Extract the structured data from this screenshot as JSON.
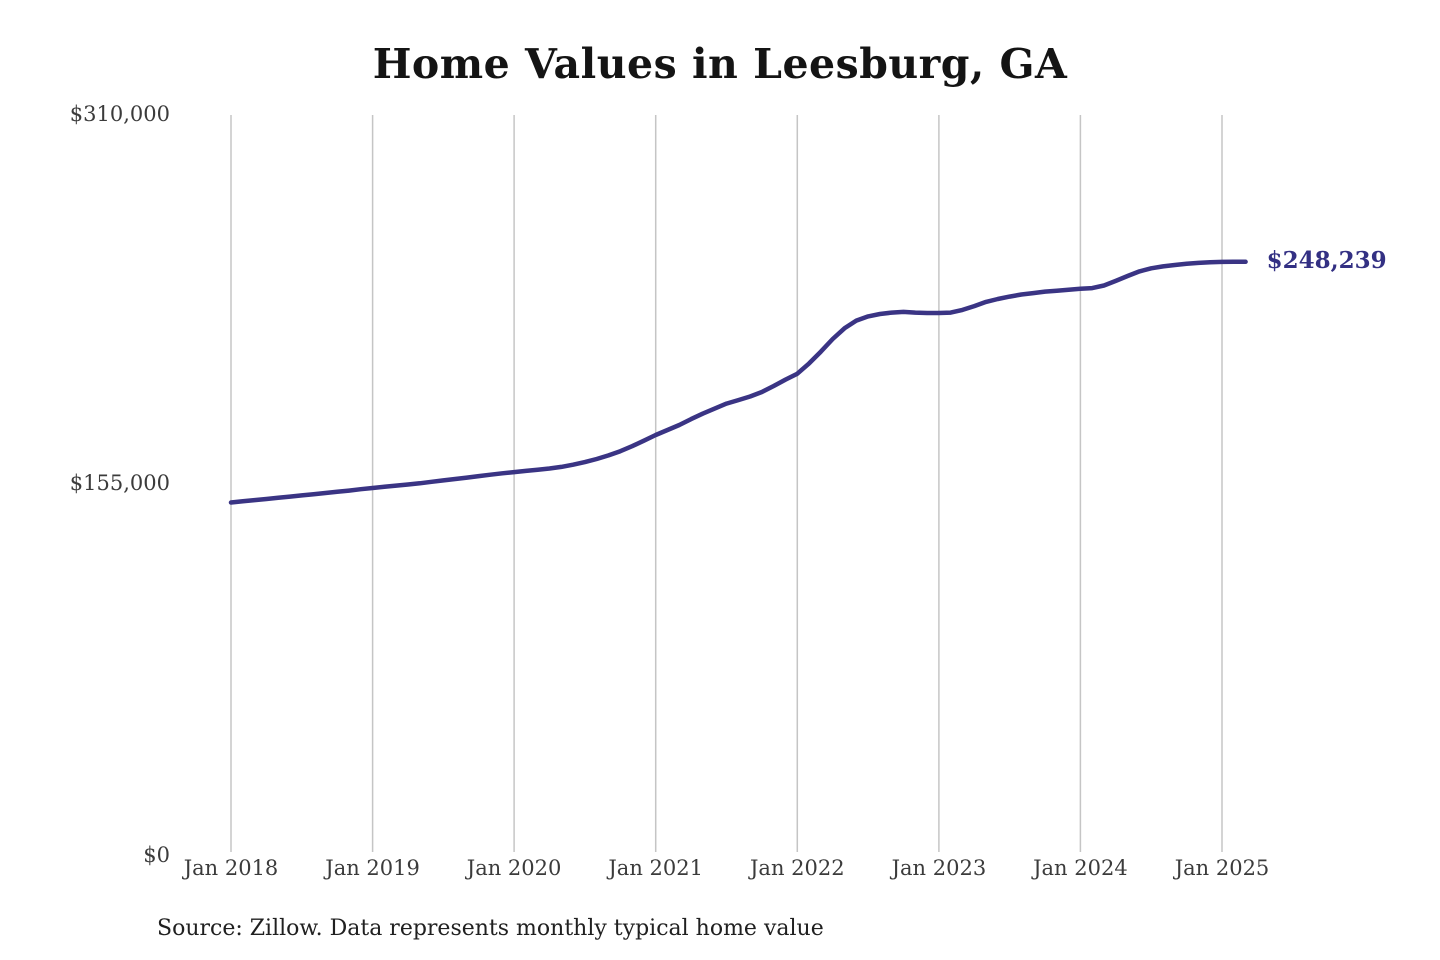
{
  "title": "Home Values in Leesburg, GA",
  "source_note": "Source: Zillow. Data represents monthly typical home value",
  "end_label": "$248,239",
  "colors": {
    "line": "#3a3484",
    "end_label": "#333083",
    "grid": "#c5c5c5"
  },
  "chart_data": {
    "type": "line",
    "title": "Home Values in Leesburg, GA",
    "x_tick_labels": [
      "Jan 2018",
      "Jan 2019",
      "Jan 2020",
      "Jan 2021",
      "Jan 2022",
      "Jan 2023",
      "Jan 2024",
      "Jan 2025"
    ],
    "y_tick_labels": [
      "$0",
      "$155,000",
      "$310,000"
    ],
    "y_tick_values": [
      0,
      155000,
      310000
    ],
    "ylim": [
      0,
      310000
    ],
    "x_start": "2018-01",
    "x_interval": "monthly",
    "x_end": "2025-03",
    "grid": "vertical-only",
    "legend": "none",
    "end_value": 248239,
    "series": [
      {
        "name": "Typical home value",
        "values": [
          147000,
          147500,
          148000,
          148500,
          149000,
          149500,
          150000,
          150500,
          151000,
          151500,
          152000,
          152600,
          153100,
          153600,
          154100,
          154600,
          155100,
          155700,
          156300,
          156900,
          157500,
          158100,
          158700,
          159300,
          159800,
          160300,
          160800,
          161300,
          162000,
          162900,
          164000,
          165300,
          166800,
          168600,
          170700,
          173000,
          175400,
          177500,
          179600,
          182100,
          184400,
          186500,
          188600,
          190100,
          191600,
          193500,
          196000,
          198700,
          201200,
          205500,
          210500,
          215800,
          220300,
          223500,
          225300,
          226300,
          226900,
          227200,
          226900,
          226700,
          226700,
          226900,
          228000,
          229600,
          231400,
          232600,
          233600,
          234500,
          235100,
          235700,
          236100,
          236500,
          236900,
          237200,
          238300,
          240200,
          242300,
          244200,
          245500,
          246300,
          246900,
          247400,
          247800,
          248100,
          248200,
          248260,
          248239
        ]
      }
    ]
  }
}
